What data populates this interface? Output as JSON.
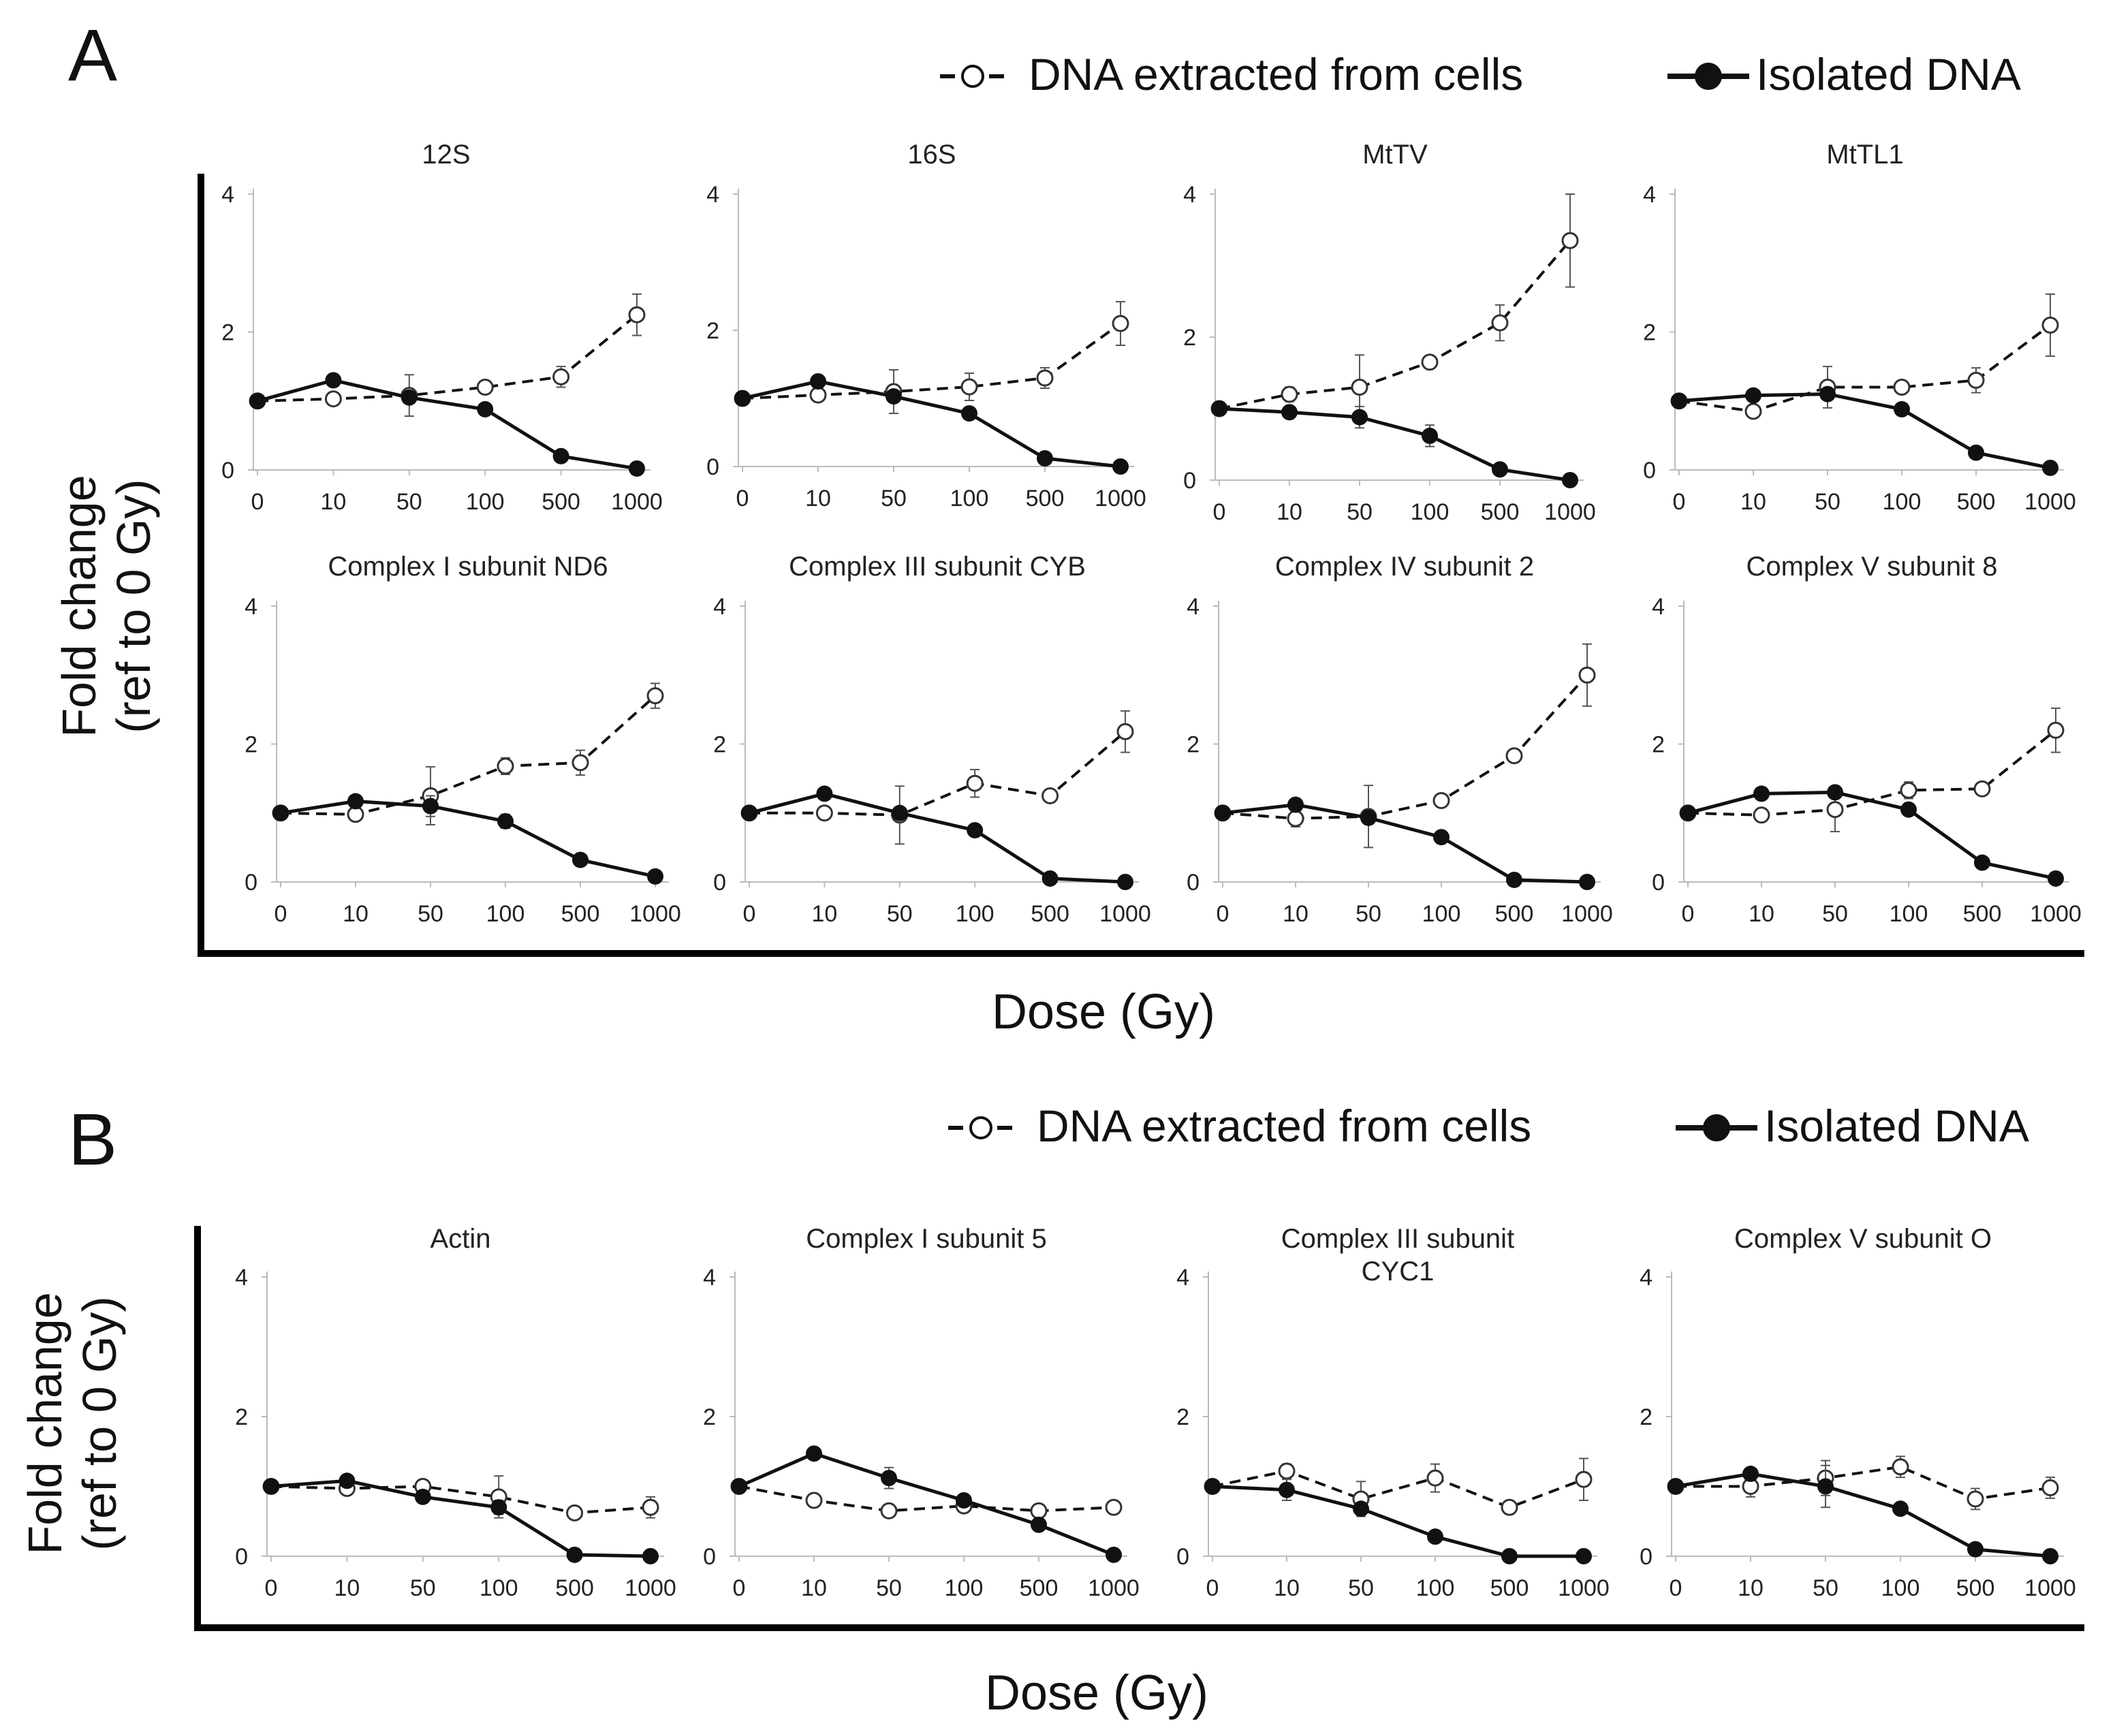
{
  "panels": [
    {
      "label": "A",
      "legend": [
        "DNA extracted from cells",
        "Isolated DNA"
      ],
      "ylabel_line1": "Fold change",
      "ylabel_line2": "(ref to 0 Gy)",
      "xlabel": "Dose (Gy)"
    },
    {
      "label": "B",
      "legend": [
        "DNA extracted from cells",
        "Isolated DNA"
      ],
      "ylabel_line1": "Fold change",
      "ylabel_line2": "(ref to 0 Gy)",
      "xlabel": "Dose (Gy)"
    }
  ],
  "colors": {
    "series_line": "#111111",
    "axis": "#bbbbbb",
    "frame": "#000000",
    "open_marker_fill": "#ffffff"
  },
  "chart_data": [
    {
      "type": "line",
      "panel": "A",
      "title": "12S",
      "categories": [
        "0",
        "10",
        "50",
        "100",
        "500",
        "1000"
      ],
      "ylim": [
        0,
        4
      ],
      "yticks": [
        0,
        2,
        4
      ],
      "series": [
        {
          "name": "DNA extracted from cells",
          "style": "dashed-open",
          "values": [
            1.0,
            1.03,
            1.08,
            1.2,
            1.35,
            2.25
          ],
          "errors": [
            0,
            0.05,
            0.3,
            0.08,
            0.15,
            0.3
          ]
        },
        {
          "name": "Isolated DNA",
          "style": "solid-filled",
          "values": [
            1.0,
            1.3,
            1.05,
            0.88,
            0.2,
            0.02
          ],
          "errors": [
            0,
            0,
            0,
            0,
            0,
            0
          ]
        }
      ]
    },
    {
      "type": "line",
      "panel": "A",
      "title": "16S",
      "categories": [
        "0",
        "10",
        "50",
        "100",
        "500",
        "1000"
      ],
      "ylim": [
        0,
        4
      ],
      "yticks": [
        0,
        2,
        4
      ],
      "series": [
        {
          "name": "DNA extracted from cells",
          "style": "dashed-open",
          "values": [
            1.0,
            1.05,
            1.1,
            1.17,
            1.3,
            2.1
          ],
          "errors": [
            0,
            0.08,
            0.32,
            0.2,
            0.15,
            0.32
          ]
        },
        {
          "name": "Isolated DNA",
          "style": "solid-filled",
          "values": [
            1.0,
            1.25,
            1.03,
            0.78,
            0.12,
            0.0
          ],
          "errors": [
            0,
            0,
            0,
            0,
            0,
            0
          ]
        }
      ]
    },
    {
      "type": "line",
      "panel": "A",
      "title": "MtTV",
      "categories": [
        "0",
        "10",
        "50",
        "100",
        "500",
        "1000"
      ],
      "ylim": [
        0,
        4
      ],
      "yticks": [
        0,
        2,
        4
      ],
      "series": [
        {
          "name": "DNA extracted from cells",
          "style": "dashed-open",
          "values": [
            1.0,
            1.2,
            1.3,
            1.65,
            2.2,
            3.35
          ],
          "errors": [
            0,
            0.1,
            0.45,
            0.05,
            0.25,
            0.65
          ]
        },
        {
          "name": "Isolated DNA",
          "style": "solid-filled",
          "values": [
            1.0,
            0.95,
            0.88,
            0.62,
            0.15,
            0.0
          ],
          "errors": [
            0,
            0,
            0.15,
            0.15,
            0,
            0
          ]
        }
      ]
    },
    {
      "type": "line",
      "panel": "A",
      "title": "MtTL1",
      "categories": [
        "0",
        "10",
        "50",
        "100",
        "500",
        "1000"
      ],
      "ylim": [
        0,
        4
      ],
      "yticks": [
        0,
        2,
        4
      ],
      "series": [
        {
          "name": "DNA extracted from cells",
          "style": "dashed-open",
          "values": [
            1.0,
            0.85,
            1.2,
            1.2,
            1.3,
            2.1
          ],
          "errors": [
            0,
            0.05,
            0.3,
            0.06,
            0.18,
            0.45
          ]
        },
        {
          "name": "Isolated DNA",
          "style": "solid-filled",
          "values": [
            1.0,
            1.08,
            1.1,
            0.88,
            0.25,
            0.03
          ],
          "errors": [
            0,
            0,
            0,
            0,
            0,
            0
          ]
        }
      ]
    },
    {
      "type": "line",
      "panel": "A",
      "title": "Complex I subunit ND6",
      "categories": [
        "0",
        "10",
        "50",
        "100",
        "500",
        "1000"
      ],
      "ylim": [
        0,
        4
      ],
      "yticks": [
        0,
        2,
        4
      ],
      "series": [
        {
          "name": "DNA extracted from cells",
          "style": "dashed-open",
          "values": [
            1.0,
            0.98,
            1.25,
            1.68,
            1.73,
            2.7
          ],
          "errors": [
            0,
            0.06,
            0.42,
            0.12,
            0.18,
            0.18
          ]
        },
        {
          "name": "Isolated DNA",
          "style": "solid-filled",
          "values": [
            1.0,
            1.17,
            1.1,
            0.88,
            0.32,
            0.08
          ],
          "errors": [
            0,
            0,
            0.15,
            0.1,
            0,
            0
          ]
        }
      ]
    },
    {
      "type": "line",
      "panel": "A",
      "title": "Complex III subunit CYB",
      "categories": [
        "0",
        "10",
        "50",
        "100",
        "500",
        "1000"
      ],
      "ylim": [
        0,
        4
      ],
      "yticks": [
        0,
        2,
        4
      ],
      "series": [
        {
          "name": "DNA extracted from cells",
          "style": "dashed-open",
          "values": [
            1.0,
            1.0,
            0.97,
            1.43,
            1.25,
            2.18
          ],
          "errors": [
            0,
            0.06,
            0.42,
            0.2,
            0.06,
            0.3
          ]
        },
        {
          "name": "Isolated DNA",
          "style": "solid-filled",
          "values": [
            1.0,
            1.28,
            1.0,
            0.75,
            0.05,
            0.0
          ],
          "errors": [
            0,
            0,
            0,
            0,
            0,
            0
          ]
        }
      ]
    },
    {
      "type": "line",
      "panel": "A",
      "title": "Complex IV subunit 2",
      "categories": [
        "0",
        "10",
        "50",
        "100",
        "500",
        "1000"
      ],
      "ylim": [
        0,
        4
      ],
      "yticks": [
        0,
        2,
        4
      ],
      "series": [
        {
          "name": "DNA extracted from cells",
          "style": "dashed-open",
          "values": [
            1.0,
            0.92,
            0.95,
            1.18,
            1.83,
            3.0
          ],
          "errors": [
            0,
            0.12,
            0.45,
            0.06,
            0.06,
            0.45
          ]
        },
        {
          "name": "Isolated DNA",
          "style": "solid-filled",
          "values": [
            1.0,
            1.12,
            0.93,
            0.65,
            0.03,
            0.0
          ],
          "errors": [
            0,
            0,
            0,
            0,
            0,
            0
          ]
        }
      ]
    },
    {
      "type": "line",
      "panel": "A",
      "title": "Complex V subunit 8",
      "categories": [
        "0",
        "10",
        "50",
        "100",
        "500",
        "1000"
      ],
      "ylim": [
        0,
        4
      ],
      "yticks": [
        0,
        2,
        4
      ],
      "series": [
        {
          "name": "DNA extracted from cells",
          "style": "dashed-open",
          "values": [
            1.0,
            0.97,
            1.05,
            1.33,
            1.35,
            2.2
          ],
          "errors": [
            0,
            0.05,
            0.32,
            0.12,
            0.06,
            0.32
          ]
        },
        {
          "name": "Isolated DNA",
          "style": "solid-filled",
          "values": [
            1.0,
            1.28,
            1.3,
            1.05,
            0.28,
            0.05
          ],
          "errors": [
            0,
            0,
            0,
            0,
            0,
            0
          ]
        }
      ]
    },
    {
      "type": "line",
      "panel": "B",
      "title": "Actin",
      "categories": [
        "0",
        "10",
        "50",
        "100",
        "500",
        "1000"
      ],
      "ylim": [
        0,
        4
      ],
      "yticks": [
        0,
        2,
        4
      ],
      "series": [
        {
          "name": "DNA extracted from cells",
          "style": "dashed-open",
          "values": [
            1.0,
            0.97,
            1.0,
            0.85,
            0.62,
            0.7
          ],
          "errors": [
            0,
            0.06,
            0.06,
            0.3,
            0.08,
            0.15
          ]
        },
        {
          "name": "Isolated DNA",
          "style": "solid-filled",
          "values": [
            1.0,
            1.08,
            0.85,
            0.7,
            0.02,
            0.0
          ],
          "errors": [
            0,
            0,
            0,
            0.1,
            0,
            0
          ]
        }
      ]
    },
    {
      "type": "line",
      "panel": "B",
      "title": "Complex I subunit 5",
      "categories": [
        "0",
        "10",
        "50",
        "100",
        "500",
        "1000"
      ],
      "ylim": [
        0,
        4
      ],
      "yticks": [
        0,
        2,
        4
      ],
      "series": [
        {
          "name": "DNA extracted from cells",
          "style": "dashed-open",
          "values": [
            1.0,
            0.8,
            0.65,
            0.72,
            0.65,
            0.7
          ],
          "errors": [
            0,
            0,
            0,
            0.06,
            0.05,
            0.05
          ]
        },
        {
          "name": "Isolated DNA",
          "style": "solid-filled",
          "values": [
            1.0,
            1.47,
            1.12,
            0.8,
            0.45,
            0.02
          ],
          "errors": [
            0,
            0,
            0.15,
            0,
            0,
            0
          ]
        }
      ]
    },
    {
      "type": "line",
      "panel": "B",
      "title": "Complex III subunit CYC1",
      "categories": [
        "0",
        "10",
        "50",
        "100",
        "500",
        "1000"
      ],
      "ylim": [
        0,
        4
      ],
      "yticks": [
        0,
        2,
        4
      ],
      "series": [
        {
          "name": "DNA extracted from cells",
          "style": "dashed-open",
          "values": [
            1.0,
            1.22,
            0.82,
            1.12,
            0.7,
            1.1
          ],
          "errors": [
            0,
            0.1,
            0.25,
            0.2,
            0.06,
            0.3
          ]
        },
        {
          "name": "Isolated DNA",
          "style": "solid-filled",
          "values": [
            1.0,
            0.95,
            0.68,
            0.28,
            0.0,
            0.0
          ],
          "errors": [
            0,
            0.15,
            0,
            0,
            0,
            0
          ]
        }
      ]
    },
    {
      "type": "line",
      "panel": "B",
      "title": "Complex V subunit O",
      "categories": [
        "0",
        "10",
        "50",
        "100",
        "500",
        "1000"
      ],
      "ylim": [
        0,
        4
      ],
      "yticks": [
        0,
        2,
        4
      ],
      "series": [
        {
          "name": "DNA extracted from cells",
          "style": "dashed-open",
          "values": [
            1.0,
            1.0,
            1.12,
            1.28,
            0.82,
            0.98
          ],
          "errors": [
            0,
            0.15,
            0.25,
            0.15,
            0.15,
            0.15
          ]
        },
        {
          "name": "Isolated DNA",
          "style": "solid-filled",
          "values": [
            1.0,
            1.18,
            1.0,
            0.68,
            0.1,
            0.0
          ],
          "errors": [
            0,
            0,
            0.3,
            0,
            0,
            0
          ]
        }
      ]
    }
  ]
}
